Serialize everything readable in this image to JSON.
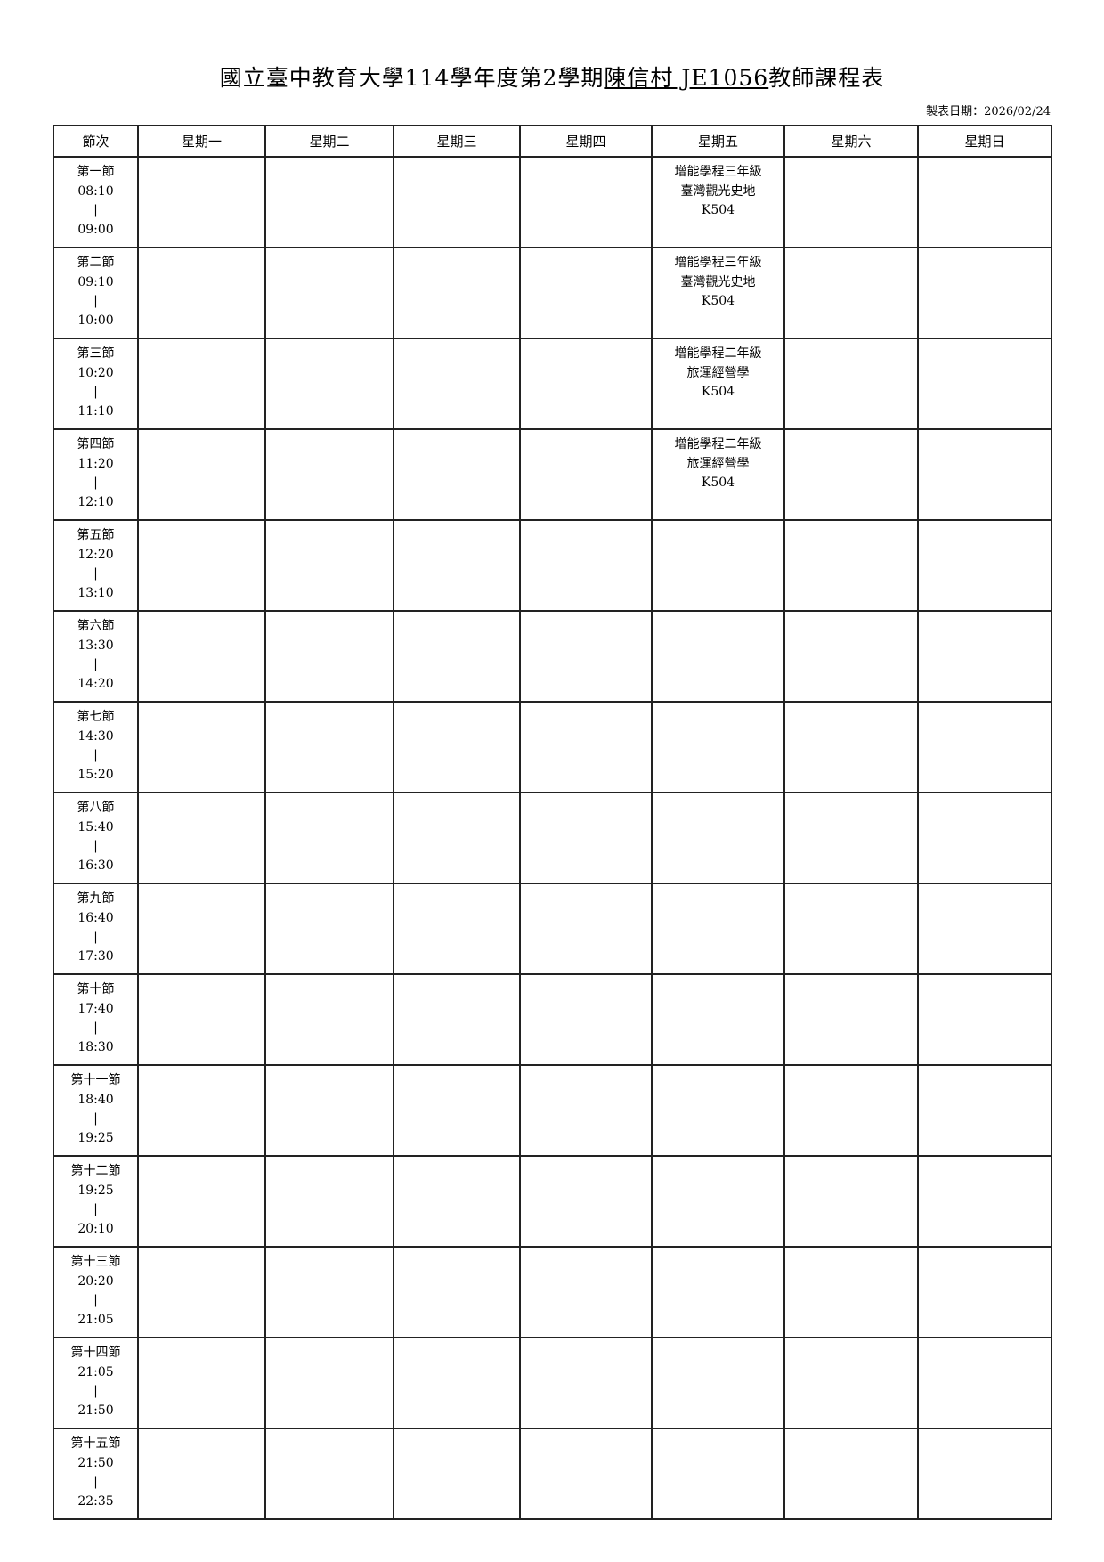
{
  "title": {
    "prefix": "國立臺中教育大學114學年度第2學期",
    "teacher": "陳信村 JE1056",
    "suffix": "教師課程表"
  },
  "print_date": "製表日期：2026/02/24",
  "columns": [
    "節次",
    "星期一",
    "星期二",
    "星期三",
    "星期四",
    "星期五",
    "星期六",
    "星期日"
  ],
  "periods": [
    {
      "name": "第一節",
      "start": "08:10",
      "end": "09:00"
    },
    {
      "name": "第二節",
      "start": "09:10",
      "end": "10:00"
    },
    {
      "name": "第三節",
      "start": "10:20",
      "end": "11:10"
    },
    {
      "name": "第四節",
      "start": "11:20",
      "end": "12:10"
    },
    {
      "name": "第五節",
      "start": "12:20",
      "end": "13:10"
    },
    {
      "name": "第六節",
      "start": "13:30",
      "end": "14:20"
    },
    {
      "name": "第七節",
      "start": "14:30",
      "end": "15:20"
    },
    {
      "name": "第八節",
      "start": "15:40",
      "end": "16:30"
    },
    {
      "name": "第九節",
      "start": "16:40",
      "end": "17:30"
    },
    {
      "name": "第十節",
      "start": "17:40",
      "end": "18:30"
    },
    {
      "name": "第十一節",
      "start": "18:40",
      "end": "19:25"
    },
    {
      "name": "第十二節",
      "start": "19:25",
      "end": "20:10"
    },
    {
      "name": "第十三節",
      "start": "20:20",
      "end": "21:05"
    },
    {
      "name": "第十四節",
      "start": "21:05",
      "end": "21:50"
    },
    {
      "name": "第十五節",
      "start": "21:50",
      "end": "22:35"
    }
  ],
  "separator": "|",
  "courses": [
    {
      "period": 0,
      "day": 4,
      "lines": [
        "增能學程三年級",
        "臺灣觀光史地",
        "K504"
      ]
    },
    {
      "period": 1,
      "day": 4,
      "lines": [
        "增能學程三年級",
        "臺灣觀光史地",
        "K504"
      ]
    },
    {
      "period": 2,
      "day": 4,
      "lines": [
        "增能學程二年級",
        "旅運經營學",
        "K504"
      ]
    },
    {
      "period": 3,
      "day": 4,
      "lines": [
        "增能學程二年級",
        "旅運經營學",
        "K504"
      ]
    }
  ]
}
